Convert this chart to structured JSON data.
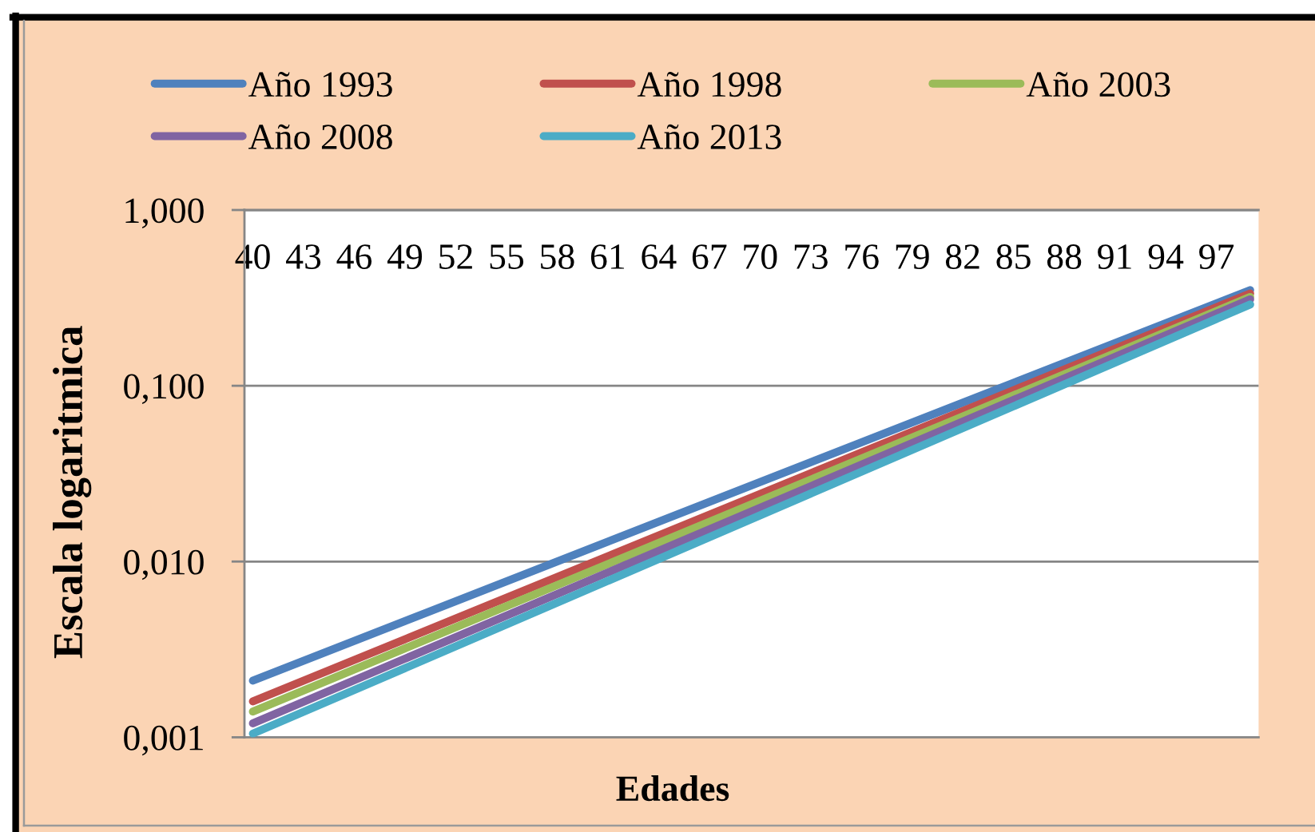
{
  "chart_data": {
    "type": "line",
    "xlabel": "Edades",
    "ylabel": "Escala logaritmica",
    "log": "y",
    "grid": "y",
    "legend": "top",
    "line_style": "solid",
    "x": [
      40,
      99
    ],
    "xlim": [
      39.5,
      99.5
    ],
    "xticks": [
      40,
      43,
      46,
      49,
      52,
      55,
      58,
      61,
      64,
      67,
      70,
      73,
      76,
      79,
      82,
      85,
      88,
      91,
      94,
      97
    ],
    "ylim": [
      0.001,
      1
    ],
    "yticks": [
      {
        "value": 0.001,
        "label": "0,001"
      },
      {
        "value": 0.01,
        "label": "0,010"
      },
      {
        "value": 0.1,
        "label": "0,100"
      },
      {
        "value": 1,
        "label": "1,000"
      }
    ],
    "series": [
      {
        "name": "Año 1993",
        "color": "#4f81bd",
        "values": [
          0.0021,
          0.35
        ]
      },
      {
        "name": "Año 1998",
        "color": "#c0504d",
        "values": [
          0.0016,
          0.335
        ]
      },
      {
        "name": "Año 2003",
        "color": "#9bbb59",
        "values": [
          0.0014,
          0.32
        ]
      },
      {
        "name": "Año 2008",
        "color": "#8064a2",
        "values": [
          0.0012,
          0.31
        ]
      },
      {
        "name": "Año 2013",
        "color": "#4bacc6",
        "values": [
          0.00105,
          0.29
        ]
      }
    ]
  }
}
